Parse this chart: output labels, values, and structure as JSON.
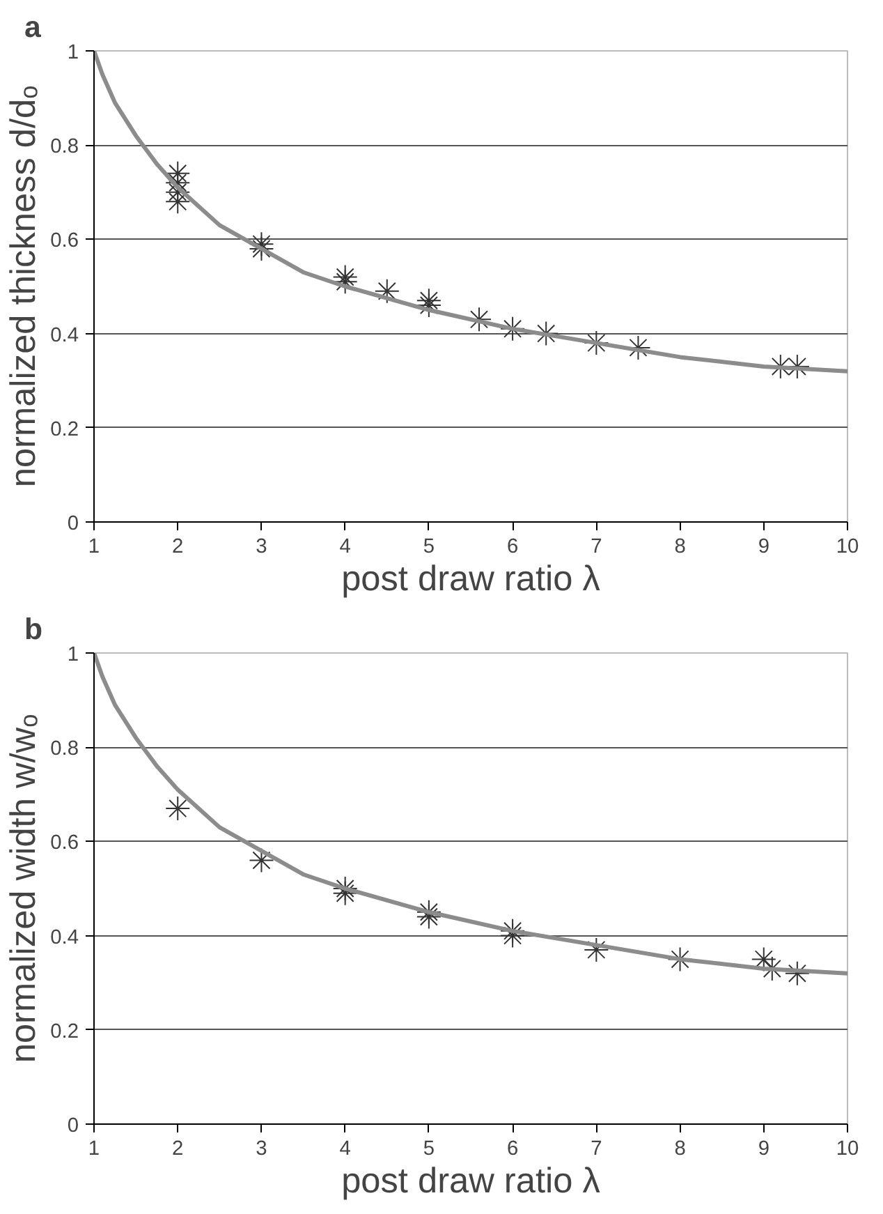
{
  "chart_data": [
    {
      "type": "scatter",
      "title": "a",
      "xlabel": "post draw ratio λ",
      "ylabel": "normalized thickness d/dₒ",
      "xlim": [
        1,
        10
      ],
      "ylim": [
        0,
        1
      ],
      "xticks": [
        1,
        2,
        3,
        4,
        5,
        6,
        7,
        8,
        9,
        10
      ],
      "yticks": [
        0,
        0.2,
        0.4,
        0.6,
        0.8,
        1
      ],
      "grid": "y",
      "marker": "cross",
      "series": [
        {
          "color": "#333333",
          "x": [
            2,
            2,
            2,
            2,
            3,
            3,
            4,
            4,
            4.5,
            5,
            5,
            5.6,
            6,
            6.4,
            7,
            7.5,
            9.2,
            9.4
          ],
          "values": [
            0.74,
            0.72,
            0.7,
            0.68,
            0.59,
            0.58,
            0.52,
            0.51,
            0.49,
            0.47,
            0.46,
            0.43,
            0.41,
            0.4,
            0.38,
            0.37,
            0.33,
            0.33
          ]
        },
        {
          "type": "line",
          "color": "#8c8c8c",
          "marker": "none",
          "x": [
            1,
            1.1,
            1.25,
            1.5,
            1.75,
            2,
            2.5,
            3,
            3.5,
            4,
            5,
            6,
            7,
            8,
            9,
            10
          ],
          "values": [
            1,
            0.95,
            0.89,
            0.82,
            0.76,
            0.71,
            0.63,
            0.58,
            0.53,
            0.5,
            0.45,
            0.41,
            0.38,
            0.35,
            0.33,
            0.32
          ]
        }
      ]
    },
    {
      "type": "scatter",
      "title": "b",
      "xlabel": "post draw ratio λ",
      "ylabel": "normalized width w/wₒ",
      "xlim": [
        1,
        10
      ],
      "ylim": [
        0,
        1
      ],
      "xticks": [
        1,
        2,
        3,
        4,
        5,
        6,
        7,
        8,
        9,
        10
      ],
      "yticks": [
        0,
        0.2,
        0.4,
        0.6,
        0.8,
        1
      ],
      "grid": "y",
      "marker": "cross",
      "series": [
        {
          "color": "#333333",
          "x": [
            2,
            3,
            4,
            4,
            5,
            5,
            6,
            6,
            7,
            8,
            9,
            9.1,
            9.4
          ],
          "values": [
            0.67,
            0.56,
            0.5,
            0.49,
            0.45,
            0.44,
            0.41,
            0.4,
            0.37,
            0.35,
            0.35,
            0.33,
            0.32
          ]
        },
        {
          "type": "line",
          "color": "#8c8c8c",
          "marker": "none",
          "x": [
            1,
            1.1,
            1.25,
            1.5,
            1.75,
            2,
            2.5,
            3,
            3.5,
            4,
            5,
            6,
            7,
            8,
            9,
            10
          ],
          "values": [
            1,
            0.95,
            0.89,
            0.82,
            0.76,
            0.71,
            0.63,
            0.58,
            0.53,
            0.5,
            0.45,
            0.41,
            0.38,
            0.35,
            0.33,
            0.32
          ]
        }
      ]
    }
  ]
}
